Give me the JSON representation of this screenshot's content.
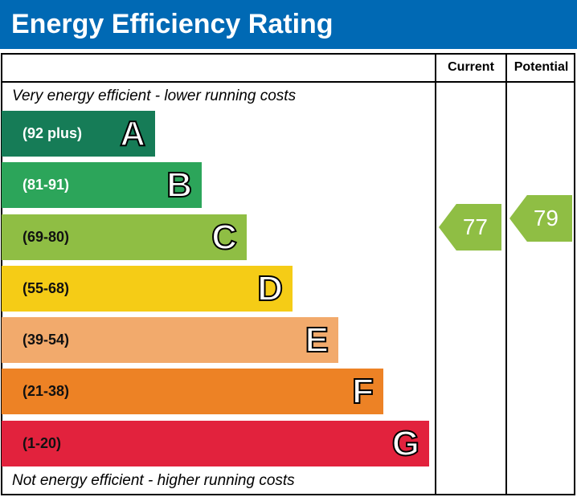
{
  "title": "Energy Efficiency Rating",
  "columns": {
    "current": "Current",
    "potential": "Potential"
  },
  "top_note": "Very energy efficient - lower running costs",
  "bottom_note": "Not energy efficient - higher running costs",
  "chart_data": {
    "type": "bar",
    "bands": [
      {
        "letter": "A",
        "range": "(92 plus)",
        "color": "#167c57"
      },
      {
        "letter": "B",
        "range": "(81-91)",
        "color": "#2ca55a"
      },
      {
        "letter": "C",
        "range": "(69-80)",
        "color": "#8fbe44"
      },
      {
        "letter": "D",
        "range": "(55-68)",
        "color": "#f5cc16"
      },
      {
        "letter": "E",
        "range": "(39-54)",
        "color": "#f2aa6c"
      },
      {
        "letter": "F",
        "range": "(21-38)",
        "color": "#ed8225"
      },
      {
        "letter": "G",
        "range": "(1-20)",
        "color": "#e2223d"
      }
    ],
    "current": {
      "value": "77",
      "band": "C",
      "color": "#8fbe44"
    },
    "potential": {
      "value": "79",
      "band": "C",
      "color": "#8fbe44"
    }
  }
}
